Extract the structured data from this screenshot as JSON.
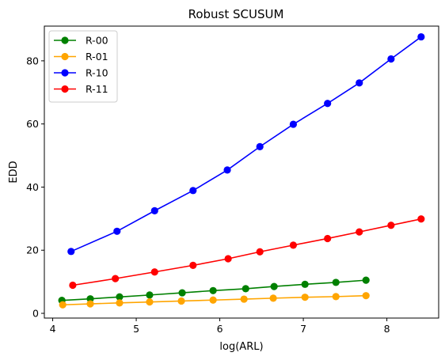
{
  "chart_data": {
    "type": "line",
    "title": "Robust SCUSUM",
    "xlabel": "log(ARL)",
    "ylabel": "EDD",
    "xlim": [
      3.9,
      8.62
    ],
    "ylim": [
      -1.5,
      91
    ],
    "xticks": [
      "4",
      "5",
      "6",
      "7",
      "8"
    ],
    "yticks": [
      "0",
      "20",
      "40",
      "60",
      "80"
    ],
    "grid": false,
    "legend_position": "top-left",
    "series": [
      {
        "name": "R-00",
        "color": "#008000",
        "x": [
          4.11,
          4.45,
          4.8,
          5.16,
          5.55,
          5.92,
          6.31,
          6.65,
          7.02,
          7.39,
          7.75
        ],
        "y": [
          4.1,
          4.6,
          5.2,
          5.8,
          6.5,
          7.2,
          7.8,
          8.5,
          9.2,
          9.8,
          10.5
        ]
      },
      {
        "name": "R-01",
        "color": "#ffa500",
        "x": [
          4.12,
          4.45,
          4.8,
          5.16,
          5.54,
          5.92,
          6.29,
          6.64,
          7.02,
          7.39,
          7.75
        ],
        "y": [
          2.7,
          3.0,
          3.3,
          3.6,
          3.9,
          4.2,
          4.5,
          4.8,
          5.1,
          5.3,
          5.6
        ]
      },
      {
        "name": "R-10",
        "color": "#0000ff",
        "x": [
          4.22,
          4.77,
          5.22,
          5.68,
          6.09,
          6.48,
          6.88,
          7.29,
          7.67,
          8.05,
          8.41
        ],
        "y": [
          19.6,
          26.0,
          32.5,
          38.9,
          45.4,
          52.8,
          59.9,
          66.5,
          73.0,
          80.6,
          87.6
        ]
      },
      {
        "name": "R-11",
        "color": "#ff0000",
        "x": [
          4.24,
          4.75,
          5.22,
          5.68,
          6.1,
          6.48,
          6.88,
          7.29,
          7.67,
          8.05,
          8.41
        ],
        "y": [
          8.9,
          11.0,
          13.1,
          15.2,
          17.3,
          19.5,
          21.6,
          23.7,
          25.8,
          27.9,
          29.9
        ]
      }
    ]
  }
}
